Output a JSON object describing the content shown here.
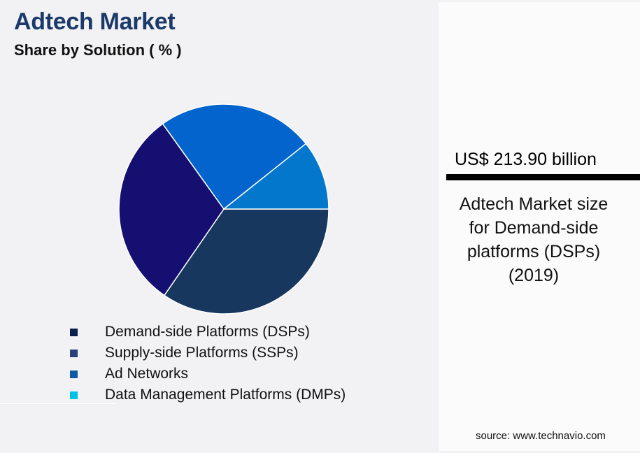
{
  "header": {
    "title": "Adtech Market",
    "subtitle": "Share by Solution ( % )"
  },
  "legend": {
    "items": [
      {
        "label": "Demand-side Platforms (DSPs)",
        "color": "#0c1e4a"
      },
      {
        "label": "Supply-side Platforms (SSPs)",
        "color": "#2b3f78"
      },
      {
        "label": "Ad Networks",
        "color": "#1158a6"
      },
      {
        "label": "Data Management Platforms (DMPs)",
        "color": "#00c0e8"
      }
    ]
  },
  "side_panel": {
    "value": "US$ 213.90 billion",
    "caption_lines": [
      "Adtech Market size",
      "for Demand-side",
      "platforms (DSPs)",
      "(2019)"
    ],
    "source": "source: www.technavio.com"
  },
  "chart_data": {
    "type": "pie",
    "title": "Adtech Market",
    "subtitle": "Share by Solution ( % )",
    "categories": [
      "Demand-side Platforms (DSPs)",
      "Supply-side Platforms (SSPs)",
      "Ad Networks",
      "Data Management Platforms (DMPs)"
    ],
    "values": [
      34.6,
      30.5,
      24.2,
      10.7
    ],
    "slice_colors": [
      "#17375f",
      "#150f72",
      "#0264cc",
      "#0277cc"
    ],
    "start_angle_deg": 0,
    "direction": "clockwise",
    "legend_position": "bottom",
    "annotation": "US$ 213.90 billion — Adtech Market size for Demand-side platforms (DSPs) (2019)"
  }
}
